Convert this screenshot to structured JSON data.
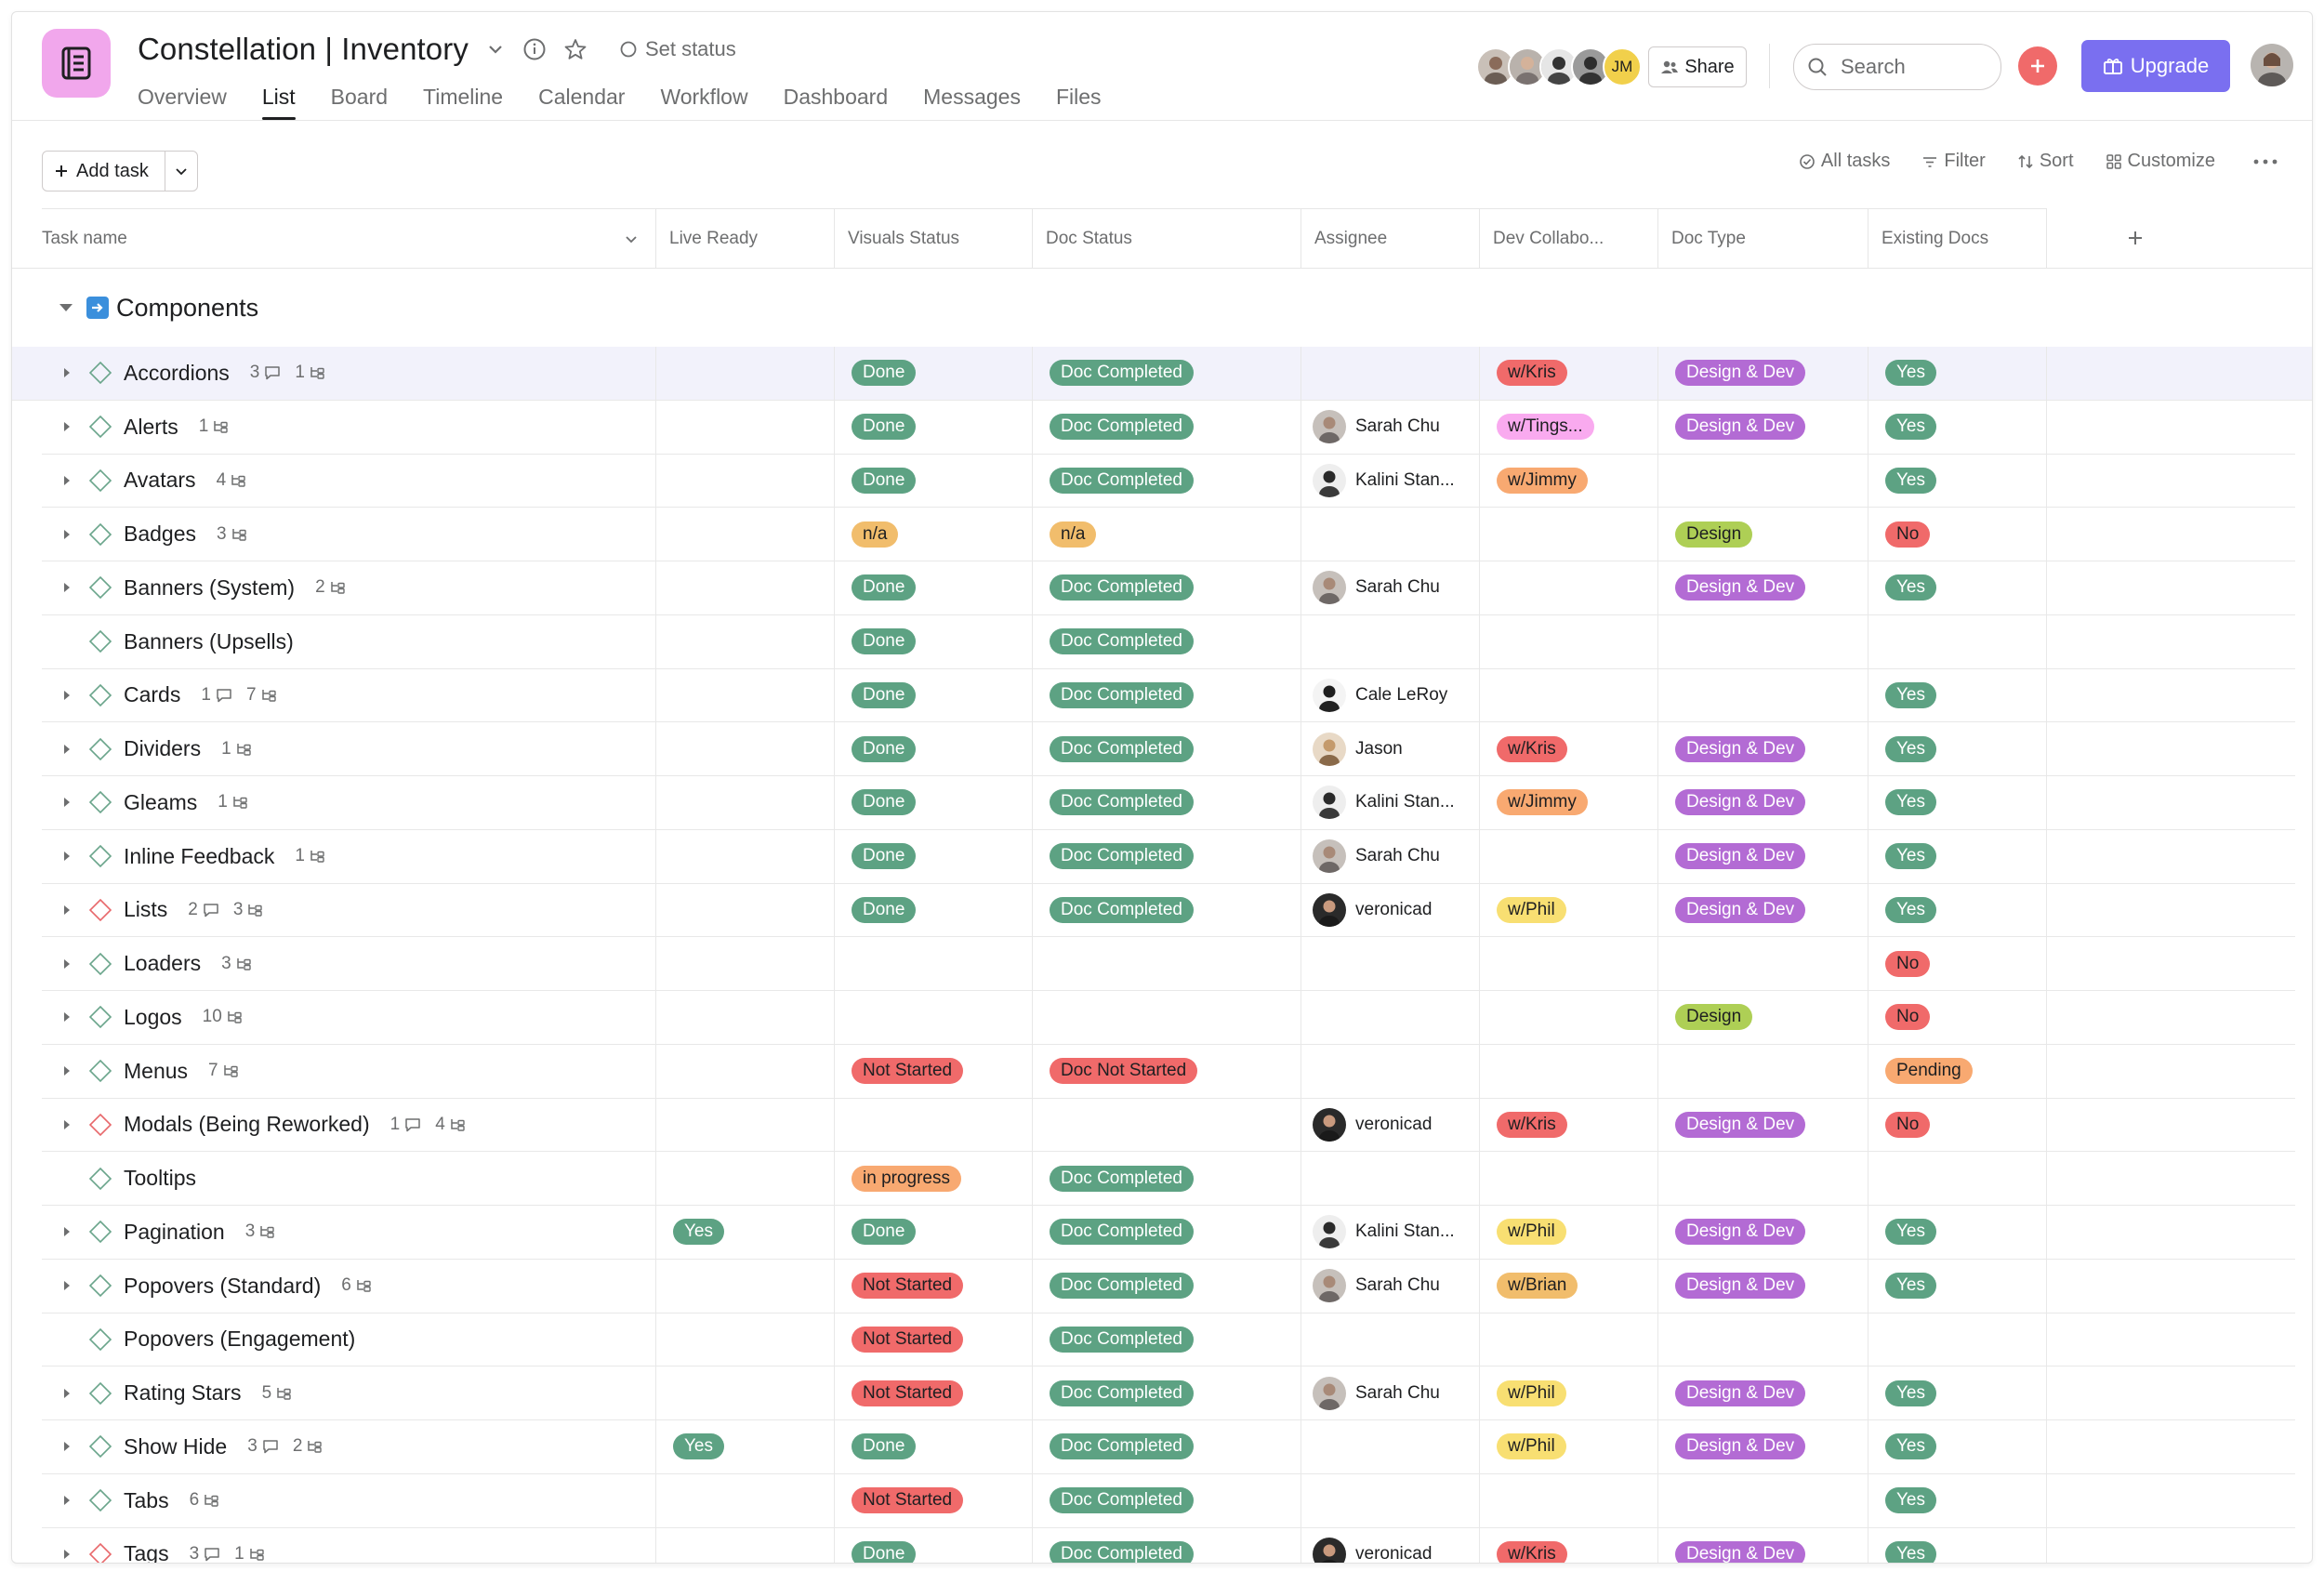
{
  "colors": {
    "green": "#5da283",
    "orange": "#f1bd6c",
    "red": "#f06a6a",
    "purple": "#b36bd4",
    "pink": "#f9aaef",
    "salmon": "#f8a971",
    "yellow": "#f8df72",
    "lime": "#aecf55",
    "accent": "#7a6ff0"
  },
  "header": {
    "title": "Constellation | Inventory",
    "set_status": "Set status",
    "tabs": [
      "Overview",
      "List",
      "Board",
      "Timeline",
      "Calendar",
      "Workflow",
      "Dashboard",
      "Messages",
      "Files"
    ],
    "active_tab": "List",
    "member_initials": "JM",
    "share_label": "Share",
    "search_placeholder": "Search",
    "upgrade_label": "Upgrade"
  },
  "toolbar": {
    "add_task_label": "Add task",
    "all_tasks_label": "All tasks",
    "filter_label": "Filter",
    "sort_label": "Sort",
    "customize_label": "Customize"
  },
  "columns": [
    "Task name",
    "Live Ready",
    "Visuals Status",
    "Doc Status",
    "Assignee",
    "Dev Collabo...",
    "Doc Type",
    "Existing Docs"
  ],
  "section": {
    "title": "Components"
  },
  "tasks": [
    {
      "name": "Accordions",
      "comments": "3",
      "subtasks": "1",
      "expand": true,
      "check": "normal",
      "live": "",
      "visuals": "Done",
      "doc": "Doc Completed",
      "assignee": "",
      "dev": "w/Kris",
      "doctype": "Design & Dev",
      "existing": "Yes"
    },
    {
      "name": "Alerts",
      "comments": "",
      "subtasks": "1",
      "expand": true,
      "check": "normal",
      "live": "",
      "visuals": "Done",
      "doc": "Doc Completed",
      "assignee": "Sarah Chu",
      "dev": "w/Tings...",
      "doctype": "Design & Dev",
      "existing": "Yes"
    },
    {
      "name": "Avatars",
      "comments": "",
      "subtasks": "4",
      "expand": true,
      "check": "normal",
      "live": "",
      "visuals": "Done",
      "doc": "Doc Completed",
      "assignee": "Kalini Stan...",
      "dev": "w/Jimmy",
      "doctype": "",
      "existing": "Yes"
    },
    {
      "name": "Badges",
      "comments": "",
      "subtasks": "3",
      "expand": true,
      "check": "normal",
      "live": "",
      "visuals": "n/a",
      "doc": "n/a",
      "assignee": "",
      "dev": "",
      "doctype": "Design",
      "existing": "No"
    },
    {
      "name": "Banners (System)",
      "comments": "",
      "subtasks": "2",
      "expand": true,
      "check": "normal",
      "live": "",
      "visuals": "Done",
      "doc": "Doc Completed",
      "assignee": "Sarah Chu",
      "dev": "",
      "doctype": "Design & Dev",
      "existing": "Yes"
    },
    {
      "name": "Banners (Upsells)",
      "comments": "",
      "subtasks": "",
      "expand": false,
      "check": "normal",
      "live": "",
      "visuals": "Done",
      "doc": "Doc Completed",
      "assignee": "",
      "dev": "",
      "doctype": "",
      "existing": ""
    },
    {
      "name": "Cards",
      "comments": "1",
      "subtasks": "7",
      "expand": true,
      "check": "normal",
      "live": "",
      "visuals": "Done",
      "doc": "Doc Completed",
      "assignee": "Cale LeRoy",
      "dev": "",
      "doctype": "",
      "existing": "Yes"
    },
    {
      "name": "Dividers",
      "comments": "",
      "subtasks": "1",
      "expand": true,
      "check": "normal",
      "live": "",
      "visuals": "Done",
      "doc": "Doc Completed",
      "assignee": "Jason",
      "dev": "w/Kris",
      "doctype": "Design & Dev",
      "existing": "Yes"
    },
    {
      "name": "Gleams",
      "comments": "",
      "subtasks": "1",
      "expand": true,
      "check": "normal",
      "live": "",
      "visuals": "Done",
      "doc": "Doc Completed",
      "assignee": "Kalini Stan...",
      "dev": "w/Jimmy",
      "doctype": "Design & Dev",
      "existing": "Yes"
    },
    {
      "name": "Inline Feedback",
      "comments": "",
      "subtasks": "1",
      "expand": true,
      "check": "normal",
      "live": "",
      "visuals": "Done",
      "doc": "Doc Completed",
      "assignee": "Sarah Chu",
      "dev": "",
      "doctype": "Design & Dev",
      "existing": "Yes"
    },
    {
      "name": "Lists",
      "comments": "2",
      "subtasks": "3",
      "expand": true,
      "check": "red",
      "live": "",
      "visuals": "Done",
      "doc": "Doc Completed",
      "assignee": "veronicad",
      "dev": "w/Phil",
      "doctype": "Design & Dev",
      "existing": "Yes"
    },
    {
      "name": "Loaders",
      "comments": "",
      "subtasks": "3",
      "expand": true,
      "check": "normal",
      "live": "",
      "visuals": "",
      "doc": "",
      "assignee": "",
      "dev": "",
      "doctype": "",
      "existing": "No"
    },
    {
      "name": "Logos",
      "comments": "",
      "subtasks": "10",
      "expand": true,
      "check": "normal",
      "live": "",
      "visuals": "",
      "doc": "",
      "assignee": "",
      "dev": "",
      "doctype": "Design",
      "existing": "No"
    },
    {
      "name": "Menus",
      "comments": "",
      "subtasks": "7",
      "expand": true,
      "check": "normal",
      "live": "",
      "visuals": "Not Started",
      "doc": "Doc Not Started",
      "assignee": "",
      "dev": "",
      "doctype": "",
      "existing": "Pending"
    },
    {
      "name": "Modals (Being Reworked)",
      "comments": "1",
      "subtasks": "4",
      "expand": true,
      "check": "red",
      "live": "",
      "visuals": "",
      "doc": "",
      "assignee": "veronicad",
      "dev": "w/Kris",
      "doctype": "Design & Dev",
      "existing": "No"
    },
    {
      "name": "Tooltips",
      "comments": "",
      "subtasks": "",
      "expand": false,
      "check": "normal",
      "live": "",
      "visuals": "in progress",
      "doc": "Doc Completed",
      "assignee": "",
      "dev": "",
      "doctype": "",
      "existing": ""
    },
    {
      "name": "Pagination",
      "comments": "",
      "subtasks": "3",
      "expand": true,
      "check": "normal",
      "live": "Yes",
      "visuals": "Done",
      "doc": "Doc Completed",
      "assignee": "Kalini Stan...",
      "dev": "w/Phil",
      "doctype": "Design & Dev",
      "existing": "Yes"
    },
    {
      "name": "Popovers (Standard)",
      "comments": "",
      "subtasks": "6",
      "expand": true,
      "check": "normal",
      "live": "",
      "visuals": "Not Started",
      "doc": "Doc Completed",
      "assignee": "Sarah Chu",
      "dev": "w/Brian",
      "doctype": "Design & Dev",
      "existing": "Yes"
    },
    {
      "name": "Popovers (Engagement)",
      "comments": "",
      "subtasks": "",
      "expand": false,
      "check": "normal",
      "live": "",
      "visuals": "Not Started",
      "doc": "Doc Completed",
      "assignee": "",
      "dev": "",
      "doctype": "",
      "existing": ""
    },
    {
      "name": "Rating Stars",
      "comments": "",
      "subtasks": "5",
      "expand": true,
      "check": "normal",
      "live": "",
      "visuals": "Not Started",
      "doc": "Doc Completed",
      "assignee": "Sarah Chu",
      "dev": "w/Phil",
      "doctype": "Design & Dev",
      "existing": "Yes"
    },
    {
      "name": "Show Hide",
      "comments": "3",
      "subtasks": "2",
      "expand": true,
      "check": "normal",
      "live": "Yes",
      "visuals": "Done",
      "doc": "Doc Completed",
      "assignee": "",
      "dev": "w/Phil",
      "doctype": "Design & Dev",
      "existing": "Yes"
    },
    {
      "name": "Tabs",
      "comments": "",
      "subtasks": "6",
      "expand": true,
      "check": "normal",
      "live": "",
      "visuals": "Not Started",
      "doc": "Doc Completed",
      "assignee": "",
      "dev": "",
      "doctype": "",
      "existing": "Yes"
    },
    {
      "name": "Tags",
      "comments": "3",
      "subtasks": "1",
      "expand": true,
      "check": "red",
      "live": "",
      "visuals": "Done",
      "doc": "Doc Completed",
      "assignee": "veronicad",
      "dev": "w/Kris",
      "doctype": "Design & Dev",
      "existing": "Yes"
    }
  ]
}
